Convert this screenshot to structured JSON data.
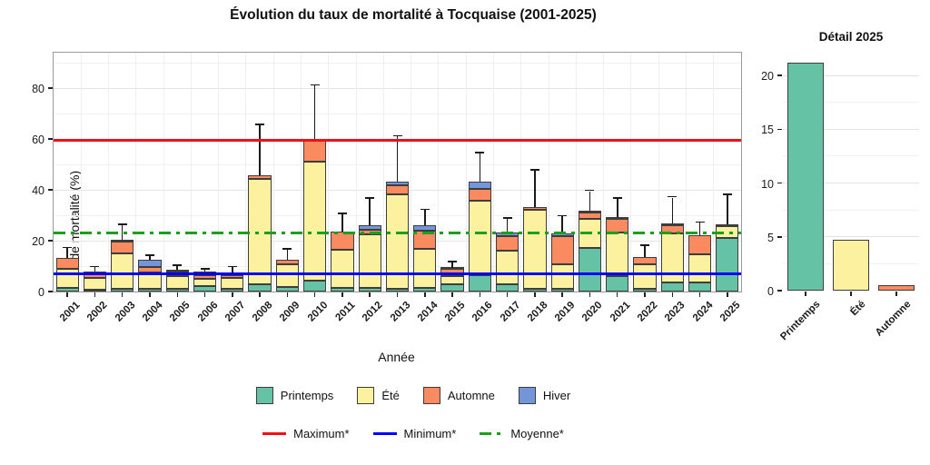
{
  "title": "Évolution du taux de mortalité à Tocquaise (2001-2025)",
  "colors": {
    "printemps": "#66C2A5",
    "ete": "#FBF19E",
    "automne": "#FA8B61",
    "hiver": "#7396DB",
    "maximum_line": "#F10E14",
    "minimum_line": "#0000FF",
    "moyenne_line": "#1BA01B"
  },
  "chart_data": [
    {
      "type": "bar",
      "stacked": true,
      "title": "Évolution du taux de mortalité à Tocquaise (2001-2025)",
      "xlabel": "Année",
      "ylabel": "Taux de mortalité (%)",
      "ylim": [
        0,
        94
      ],
      "yticks": [
        0,
        20,
        40,
        60,
        80
      ],
      "grid": true,
      "legend_position": "bottom",
      "categories": [
        "2001",
        "2002",
        "2003",
        "2004",
        "2005",
        "2006",
        "2007",
        "2008",
        "2009",
        "2010",
        "2011",
        "2012",
        "2013",
        "2014",
        "2015",
        "2016",
        "2017",
        "2018",
        "2019",
        "2020",
        "2021",
        "2022",
        "2023",
        "2024",
        "2025"
      ],
      "series": [
        {
          "name": "Printemps",
          "color": "#66C2A5",
          "values": [
            1.5,
            0.8,
            1.2,
            1.0,
            1.0,
            2.2,
            1.0,
            2.9,
            1.8,
            4.3,
            1.4,
            1.4,
            1.0,
            1.4,
            2.9,
            6.4,
            2.9,
            1.0,
            1.0,
            17.1,
            6.1,
            1.0,
            3.6,
            3.6,
            21.2
          ]
        },
        {
          "name": "Été",
          "color": "#FBF19E",
          "values": [
            7.5,
            4.6,
            13.8,
            6.5,
            5.0,
            2.8,
            4.4,
            41.6,
            8.9,
            46.7,
            15.0,
            21.1,
            37.2,
            15.4,
            3.2,
            29.3,
            13.2,
            31.1,
            9.7,
            11.5,
            17.1,
            9.7,
            19.3,
            11.0,
            4.7
          ]
        },
        {
          "name": "Automne",
          "color": "#FA8B61",
          "values": [
            4.3,
            2.5,
            4.8,
            2.2,
            2.0,
            1.4,
            1.0,
            1.2,
            1.8,
            8.5,
            7.2,
            1.8,
            3.6,
            7.1,
            2.8,
            4.7,
            5.7,
            1.1,
            11.1,
            2.5,
            5.4,
            2.8,
            3.2,
            7.5,
            0.5
          ]
        },
        {
          "name": "Hiver",
          "color": "#7396DB",
          "values": [
            0,
            0,
            0.5,
            2.7,
            0.6,
            1.5,
            0,
            0,
            0,
            0,
            0,
            1.8,
            1.4,
            2.2,
            0.4,
            2.8,
            1.4,
            0,
            1.1,
            0.7,
            0.7,
            0,
            0.7,
            0,
            0
          ]
        }
      ],
      "error_bar_tops": [
        17,
        9.5,
        26,
        14,
        10,
        8.5,
        9.5,
        65.5,
        16.5,
        81,
        30.5,
        36.5,
        61,
        32,
        11.5,
        54.5,
        28.5,
        47.5,
        29.5,
        39.5,
        36.5,
        18,
        37,
        27,
        38
      ],
      "ref_lines": [
        {
          "label": "Maximum*",
          "value": 59.5,
          "color": "#F10E14",
          "style": "solid"
        },
        {
          "label": "Minimum*",
          "value": 7.0,
          "color": "#0000FF",
          "style": "solid"
        },
        {
          "label": "Moyenne*",
          "value": 23.0,
          "color": "#1BA01B",
          "style": "dashdot"
        }
      ]
    },
    {
      "type": "bar",
      "title": "Détail 2025",
      "xlabel": "",
      "ylabel": "",
      "ylim": [
        0,
        22.2
      ],
      "yticks": [
        0,
        5,
        10,
        15,
        20
      ],
      "grid": true,
      "categories": [
        "Printemps",
        "Été",
        "Automne"
      ],
      "values": [
        21.2,
        4.7,
        0.5
      ],
      "bar_colors": [
        "#66C2A5",
        "#FBF19E",
        "#FA8B61"
      ]
    }
  ]
}
